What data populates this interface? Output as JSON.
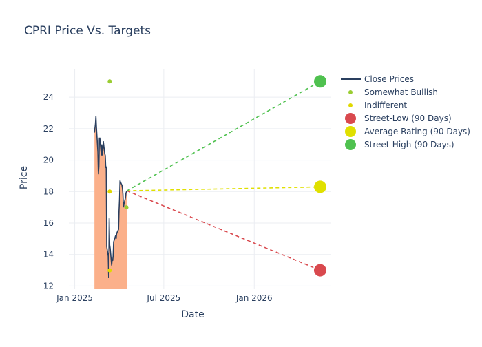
{
  "chart_data": {
    "type": "line",
    "title": "CPRI Price Vs. Targets",
    "xlabel": "Date",
    "ylabel": "Price",
    "xlim": [
      "2024-12-20",
      "2026-06-05"
    ],
    "ylim": [
      11.8,
      25.8
    ],
    "x_ticks": [
      {
        "date": "2025-01-01",
        "label": "Jan 2025"
      },
      {
        "date": "2025-07-01",
        "label": "Jul 2025"
      },
      {
        "date": "2026-01-01",
        "label": "Jan 2026"
      }
    ],
    "y_ticks": [
      12,
      14,
      16,
      18,
      20,
      22,
      24
    ],
    "grid": true,
    "legend_position": "top-right",
    "colors": {
      "close": "#2a3f5f",
      "fill": "#fbb08a",
      "somewhat_bullish": "#9acd32",
      "indifferent": "#e0d800",
      "street_low": "#d9494e",
      "average": "#e0e000",
      "street_high": "#4fc14f",
      "grid": "#ebedf2",
      "text": "#2a3f5f"
    },
    "series": [
      {
        "name": "Close Prices",
        "kind": "line",
        "points": [
          [
            "2025-02-10",
            21.75
          ],
          [
            "2025-02-12",
            22.3
          ],
          [
            "2025-02-13",
            22.8
          ],
          [
            "2025-02-14",
            22.1
          ],
          [
            "2025-02-17",
            20.5
          ],
          [
            "2025-02-18",
            19.1
          ],
          [
            "2025-02-19",
            19.6
          ],
          [
            "2025-02-20",
            21.4
          ],
          [
            "2025-02-21",
            21.4
          ],
          [
            "2025-02-24",
            20.3
          ],
          [
            "2025-02-25",
            21.0
          ],
          [
            "2025-02-26",
            20.3
          ],
          [
            "2025-02-27",
            20.6
          ],
          [
            "2025-02-28",
            21.2
          ],
          [
            "2025-03-03",
            20.4
          ],
          [
            "2025-03-04",
            20.3
          ],
          [
            "2025-03-05",
            19.5
          ],
          [
            "2025-03-06",
            19.6
          ],
          [
            "2025-03-07",
            14.5
          ],
          [
            "2025-03-10",
            13.9
          ],
          [
            "2025-03-11",
            12.5
          ],
          [
            "2025-03-12",
            16.3
          ],
          [
            "2025-03-13",
            14.6
          ],
          [
            "2025-03-14",
            14.4
          ],
          [
            "2025-03-17",
            13.3
          ],
          [
            "2025-03-18",
            13.7
          ],
          [
            "2025-03-19",
            13.6
          ],
          [
            "2025-03-20",
            13.9
          ],
          [
            "2025-03-21",
            14.8
          ],
          [
            "2025-03-24",
            15.1
          ],
          [
            "2025-03-25",
            15.2
          ],
          [
            "2025-03-26",
            15.0
          ],
          [
            "2025-03-27",
            15.3
          ],
          [
            "2025-03-28",
            15.4
          ],
          [
            "2025-03-31",
            15.6
          ],
          [
            "2025-04-01",
            16.8
          ],
          [
            "2025-04-02",
            17.5
          ],
          [
            "2025-04-03",
            18.7
          ],
          [
            "2025-04-04",
            18.6
          ],
          [
            "2025-04-07",
            18.4
          ],
          [
            "2025-04-08",
            18.2
          ],
          [
            "2025-04-09",
            17.8
          ],
          [
            "2025-04-10",
            17.0
          ],
          [
            "2025-04-11",
            17.2
          ],
          [
            "2025-04-14",
            17.6
          ],
          [
            "2025-04-15",
            17.9
          ],
          [
            "2025-04-17",
            18.05
          ]
        ]
      },
      {
        "name": "Somewhat Bullish",
        "kind": "marker",
        "points": [
          [
            "2025-03-13",
            25.0
          ],
          [
            "2025-04-16",
            17.0
          ]
        ]
      },
      {
        "name": "Indifferent",
        "kind": "marker",
        "points": [
          [
            "2025-03-13",
            18.0
          ],
          [
            "2025-03-13",
            13.0
          ]
        ]
      },
      {
        "name": "Street-Low (90 Days)",
        "kind": "target",
        "from": [
          "2025-04-17",
          18.05
        ],
        "to": [
          "2026-05-15",
          13.0
        ]
      },
      {
        "name": "Average Rating (90 Days)",
        "kind": "target",
        "from": [
          "2025-04-17",
          18.05
        ],
        "to": [
          "2026-05-15",
          18.3
        ]
      },
      {
        "name": "Street-High (90 Days)",
        "kind": "target",
        "from": [
          "2025-04-17",
          18.05
        ],
        "to": [
          "2026-05-15",
          25.0
        ]
      }
    ]
  }
}
